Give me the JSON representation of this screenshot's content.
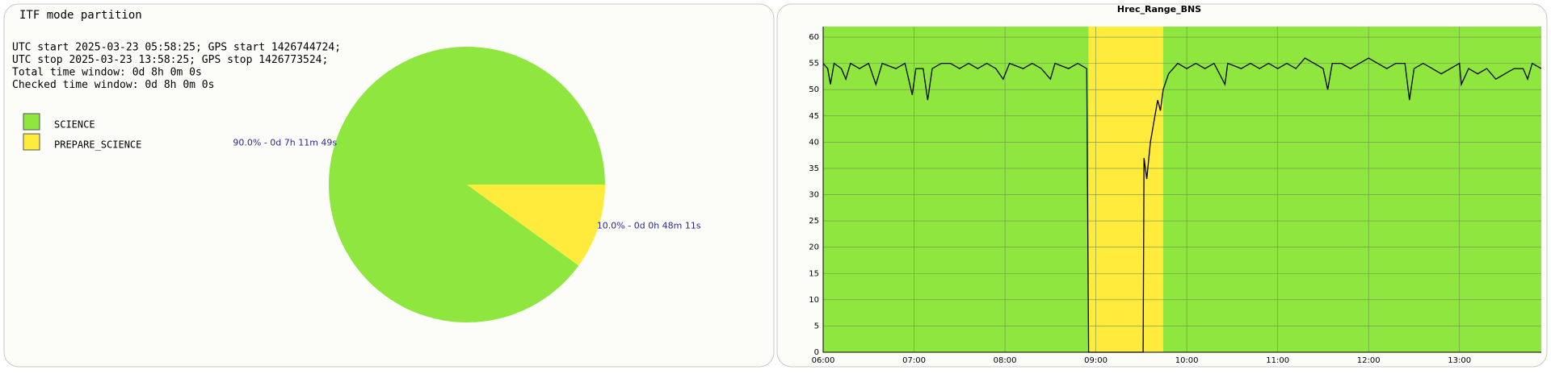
{
  "chart_data": [
    {
      "type": "pie",
      "title": "ITF mode partition",
      "info": [
        "UTC start 2025-03-23 05:58:25; GPS start 1426744724;",
        "UTC stop 2025-03-23 13:58:25; GPS stop 1426773524;",
        "Total time window: 0d 8h 0m 0s",
        "Checked time window: 0d 8h 0m 0s"
      ],
      "categories": [
        "SCIENCE",
        "PREPARE_SCIENCE"
      ],
      "values": [
        90.0,
        10.0
      ],
      "value_labels": [
        "90.0% - 0d 7h 11m 49s",
        "10.0% - 0d 0h 48m 11s"
      ],
      "colors": [
        "#8ee63f",
        "#ffeb3b"
      ]
    },
    {
      "type": "line",
      "title": "Hrec_Range_BNS",
      "xlim": [
        6,
        13.9
      ],
      "ylim": [
        0,
        62
      ],
      "xticks": [
        {
          "value": 6,
          "label": "06:00"
        },
        {
          "value": 7,
          "label": "07:00"
        },
        {
          "value": 8,
          "label": "08:00"
        },
        {
          "value": 9,
          "label": "09:00"
        },
        {
          "value": 10,
          "label": "10:00"
        },
        {
          "value": 11,
          "label": "11:00"
        },
        {
          "value": 12,
          "label": "12:00"
        },
        {
          "value": 13,
          "label": "13:00"
        }
      ],
      "yticks": [
        0,
        5,
        10,
        15,
        20,
        25,
        30,
        35,
        40,
        45,
        50,
        55,
        60
      ],
      "grid": true,
      "bands": [
        {
          "start": 6,
          "end": 8.92,
          "color": "#8ee63f"
        },
        {
          "start": 8.92,
          "end": 9.74,
          "color": "#ffeb3b"
        },
        {
          "start": 9.74,
          "end": 13.9,
          "color": "#8ee63f"
        }
      ],
      "x": [
        6.0,
        6.05,
        6.08,
        6.12,
        6.2,
        6.25,
        6.3,
        6.4,
        6.5,
        6.58,
        6.65,
        6.8,
        6.9,
        6.98,
        7.02,
        7.1,
        7.15,
        7.2,
        7.3,
        7.4,
        7.5,
        7.6,
        7.7,
        7.8,
        7.9,
        7.98,
        8.05,
        8.2,
        8.3,
        8.4,
        8.5,
        8.55,
        8.7,
        8.8,
        8.9,
        8.92,
        9.52,
        9.53,
        9.56,
        9.6,
        9.65,
        9.68,
        9.71,
        9.74,
        9.8,
        9.9,
        10.0,
        10.1,
        10.2,
        10.3,
        10.42,
        10.45,
        10.6,
        10.7,
        10.8,
        10.9,
        11.0,
        11.1,
        11.2,
        11.3,
        11.4,
        11.5,
        11.55,
        11.6,
        11.7,
        11.8,
        11.9,
        12.0,
        12.1,
        12.2,
        12.3,
        12.4,
        12.45,
        12.5,
        12.6,
        12.7,
        12.8,
        12.9,
        13.0,
        13.02,
        13.1,
        13.2,
        13.3,
        13.4,
        13.5,
        13.6,
        13.7,
        13.75,
        13.8,
        13.9
      ],
      "series": [
        {
          "color": "#000000",
          "values": [
            55,
            54,
            51,
            55,
            54,
            52,
            55,
            54,
            55,
            51,
            55,
            54,
            55,
            49,
            54,
            54,
            48,
            54,
            55,
            55,
            54,
            55,
            54,
            55,
            54,
            52,
            55,
            54,
            55,
            54,
            52,
            55,
            54,
            55,
            54,
            0,
            0,
            37,
            33,
            40,
            45,
            48,
            46,
            50,
            53,
            55,
            54,
            55,
            54,
            55,
            51,
            55,
            54,
            55,
            54,
            55,
            54,
            55,
            54,
            56,
            55,
            54,
            50,
            55,
            55,
            54,
            55,
            56,
            55,
            54,
            55,
            55,
            48,
            54,
            55,
            54,
            53,
            54,
            55,
            51,
            54,
            53,
            54,
            52,
            53,
            54,
            54,
            52,
            55,
            54
          ]
        }
      ]
    }
  ]
}
